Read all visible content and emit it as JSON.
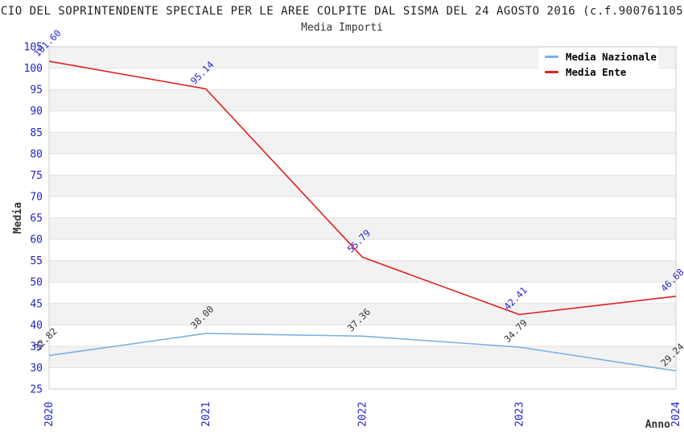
{
  "title": "CIO DEL SOPRINTENDENTE SPECIALE PER LE AREE COLPITE DAL SISMA DEL 24 AGOSTO 2016 (c.f.900761105",
  "subtitle": "Media Importi",
  "chart_data": {
    "type": "line",
    "x": [
      "2020",
      "2021",
      "2022",
      "2023",
      "2024"
    ],
    "xlabel": "Anno",
    "ylabel": "Media",
    "ylim": [
      25,
      105
    ],
    "ytick_step": 5,
    "grid": "horizontal-bands",
    "band_colors": [
      "#f2f2f2",
      "#ffffff"
    ],
    "gridline_color": "#e2e2e2",
    "frame_color": "#cccccc",
    "tick_label_color": "#2222cc",
    "axis_label_color": "#333333",
    "legend_position": "top-right",
    "value_label_decimals": 2,
    "series": [
      {
        "name": "Media Nazionale",
        "color": "#7db0e0",
        "label_color": "#333333",
        "values": [
          32.82,
          38.0,
          37.36,
          34.79,
          29.24
        ]
      },
      {
        "name": "Media Ente",
        "color": "#e02020",
        "label_color": "#2222cc",
        "values": [
          101.6,
          95.14,
          55.79,
          42.41,
          46.68
        ]
      }
    ]
  }
}
